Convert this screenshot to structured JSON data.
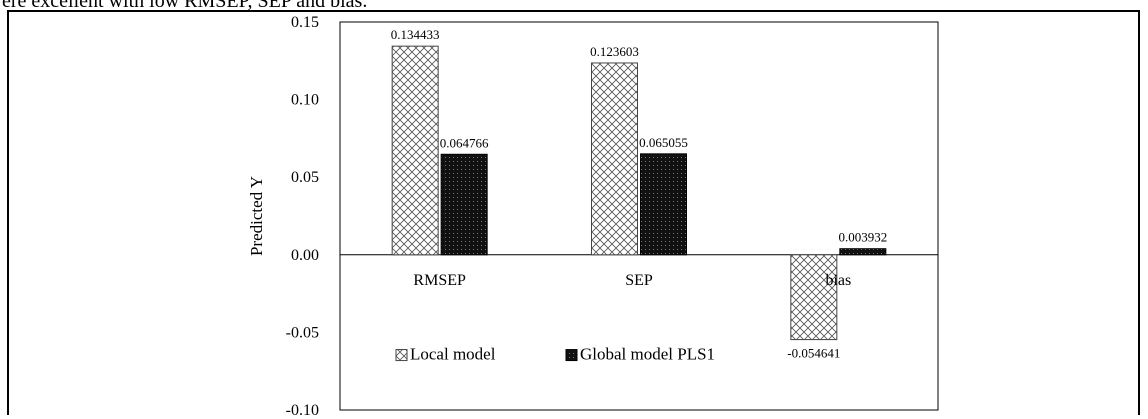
{
  "page": {
    "top_text": "ere excellent with low RMSEP, SEP and bias."
  },
  "chart_data": {
    "type": "bar",
    "title": "",
    "xlabel": "",
    "ylabel": "Predicted Y",
    "ylim": [
      -0.1,
      0.15
    ],
    "yticks": [
      "0.15",
      "0.10",
      "0.05",
      "0.00",
      "-0.05",
      "-0.10"
    ],
    "ytick_values": [
      0.15,
      0.1,
      0.05,
      0.0,
      -0.05,
      -0.1
    ],
    "categories": [
      "RMSEP",
      "SEP",
      "bias"
    ],
    "series": [
      {
        "name": "Local model",
        "values": [
          0.134433,
          0.123603,
          -0.054641
        ],
        "labels": [
          "0.134433",
          "0.123603",
          "-0.054641"
        ],
        "pattern": "crosshatch"
      },
      {
        "name": "Global model PLS1",
        "values": [
          0.064766,
          0.065055,
          0.003932
        ],
        "labels": [
          "0.064766",
          "0.065055",
          "0.003932"
        ],
        "pattern": "dense-dots"
      }
    ],
    "legend_position": "inside-bottom-left",
    "grid": false
  }
}
